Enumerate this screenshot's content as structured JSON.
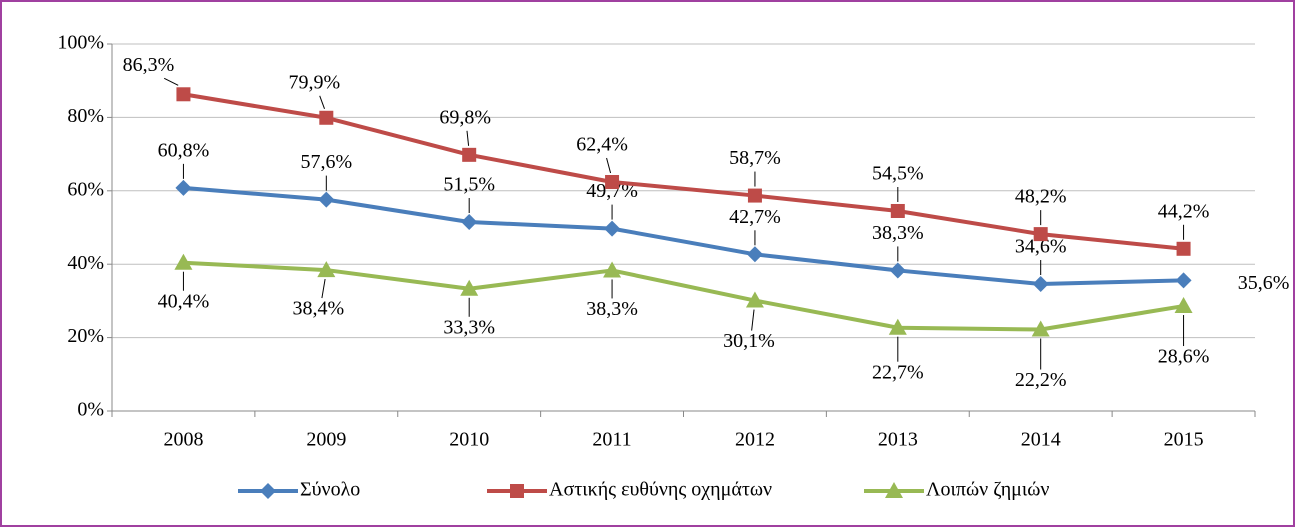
{
  "chart_data": {
    "type": "line",
    "categories": [
      "2008",
      "2009",
      "2010",
      "2011",
      "2012",
      "2013",
      "2014",
      "2015"
    ],
    "series": [
      {
        "name": "Σύνολο",
        "color": "#4a7ebb",
        "marker": "diamond",
        "values": [
          60.8,
          57.6,
          51.5,
          49.7,
          42.7,
          38.3,
          34.6,
          35.6
        ],
        "value_labels": [
          "60,8%",
          "57,6%",
          "51,5%",
          "49,7%",
          "42,7%",
          "38,3%",
          "34,6%",
          "35,6%"
        ]
      },
      {
        "name": "Αστικής ευθύνης οχημάτων",
        "color": "#be4b48",
        "marker": "square",
        "values": [
          86.3,
          79.9,
          69.8,
          62.4,
          58.7,
          54.5,
          48.2,
          44.2
        ],
        "value_labels": [
          "86,3%",
          "79,9%",
          "69,8%",
          "62,4%",
          "58,7%",
          "54,5%",
          "48,2%",
          "44,2%"
        ]
      },
      {
        "name": "Λοιπών ζημιών",
        "color": "#98b954",
        "marker": "triangle",
        "values": [
          40.4,
          38.4,
          33.3,
          38.3,
          30.1,
          22.7,
          22.2,
          28.6
        ],
        "value_labels": [
          "40,4%",
          "38,4%",
          "33,3%",
          "38,3%",
          "30,1%",
          "22,7%",
          "22,2%",
          "28,6%"
        ]
      }
    ],
    "ylim": [
      0,
      100
    ],
    "yticks": [
      {
        "value": 0,
        "label": "0%"
      },
      {
        "value": 20,
        "label": "20%"
      },
      {
        "value": 40,
        "label": "40%"
      },
      {
        "value": 60,
        "label": "60%"
      },
      {
        "value": 80,
        "label": "80%"
      },
      {
        "value": 100,
        "label": "100%"
      }
    ],
    "grid": true,
    "legend": "bottom"
  }
}
